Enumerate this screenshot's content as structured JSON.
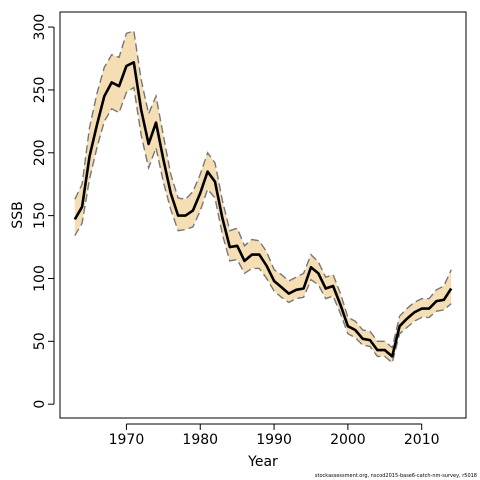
{
  "chart_data": {
    "type": "area",
    "xlabel": "Year",
    "ylabel": "SSB",
    "footnote": "stockassessment.org, nscod2015-base6-catch-nm-survey, r5018",
    "xlim": [
      1961,
      2016
    ],
    "ylim": [
      -11,
      312
    ],
    "x_ticks": [
      1970,
      1980,
      1990,
      2000,
      2010
    ],
    "y_ticks": [
      0,
      50,
      100,
      150,
      200,
      250,
      300
    ],
    "grid": false,
    "colors": {
      "band": "#f5deb3",
      "estimate": "#000000",
      "bounds": "#777777",
      "frame": "#000000"
    },
    "series": [
      {
        "role": "estimate",
        "x": [
          1963,
          1964,
          1965,
          1966,
          1967,
          1968,
          1969,
          1970,
          1971,
          1972,
          1973,
          1974,
          1975,
          1976,
          1977,
          1978,
          1979,
          1980,
          1981,
          1982,
          1983,
          1984,
          1985,
          1986,
          1987,
          1988,
          1989,
          1990,
          1991,
          1992,
          1993,
          1994,
          1995,
          1996,
          1997,
          1998,
          1999,
          2000,
          2001,
          2002,
          2003,
          2004,
          2005,
          2006,
          2007,
          2008,
          2009,
          2010,
          2011,
          2012,
          2013,
          2014
        ],
        "values": [
          147,
          157,
          197,
          222,
          245,
          256,
          253,
          269,
          272,
          234,
          207,
          224,
          195,
          168,
          150,
          150,
          154,
          168,
          185,
          177,
          148,
          125,
          126,
          114,
          119,
          119,
          110,
          98,
          93,
          88,
          91,
          92,
          109,
          104,
          92,
          94,
          79,
          62,
          59,
          52,
          51,
          43,
          43,
          38,
          62,
          68,
          73,
          76,
          76,
          82,
          83,
          92
        ]
      },
      {
        "role": "upper bound",
        "x": [
          1963,
          1964,
          1965,
          1966,
          1967,
          1968,
          1969,
          1970,
          1971,
          1972,
          1973,
          1974,
          1975,
          1976,
          1977,
          1978,
          1979,
          1980,
          1981,
          1982,
          1983,
          1984,
          1985,
          1986,
          1987,
          1988,
          1989,
          1990,
          1991,
          1992,
          1993,
          1994,
          1995,
          1996,
          1997,
          1998,
          1999,
          2000,
          2001,
          2002,
          2003,
          2004,
          2005,
          2006,
          2007,
          2008,
          2009,
          2010,
          2011,
          2012,
          2013,
          2014
        ],
        "values": [
          163,
          175,
          220,
          247,
          268,
          278,
          276,
          295,
          297,
          258,
          231,
          245,
          214,
          183,
          164,
          163,
          169,
          183,
          200,
          192,
          162,
          138,
          140,
          126,
          131,
          130,
          121,
          107,
          103,
          98,
          101,
          104,
          119,
          113,
          101,
          103,
          88,
          69,
          66,
          59,
          58,
          50,
          50,
          45,
          70,
          76,
          81,
          84,
          84,
          91,
          94,
          107
        ]
      },
      {
        "role": "lower bound",
        "x": [
          1963,
          1964,
          1965,
          1966,
          1967,
          1968,
          1969,
          1970,
          1971,
          1972,
          1973,
          1974,
          1975,
          1976,
          1977,
          1978,
          1979,
          1980,
          1981,
          1982,
          1983,
          1984,
          1985,
          1986,
          1987,
          1988,
          1989,
          1990,
          1991,
          1992,
          1993,
          1994,
          1995,
          1996,
          1997,
          1998,
          1999,
          2000,
          2001,
          2002,
          2003,
          2004,
          2005,
          2006,
          2007,
          2008,
          2009,
          2010,
          2011,
          2012,
          2013,
          2014
        ],
        "values": [
          134,
          144,
          179,
          204,
          225,
          235,
          232,
          248,
          252,
          214,
          188,
          204,
          177,
          155,
          138,
          139,
          141,
          154,
          171,
          164,
          135,
          114,
          115,
          104,
          108,
          108,
          100,
          90,
          85,
          81,
          84,
          85,
          99,
          95,
          84,
          86,
          72,
          56,
          53,
          47,
          46,
          38,
          38,
          33,
          56,
          61,
          66,
          69,
          69,
          74,
          75,
          80
        ]
      }
    ]
  }
}
